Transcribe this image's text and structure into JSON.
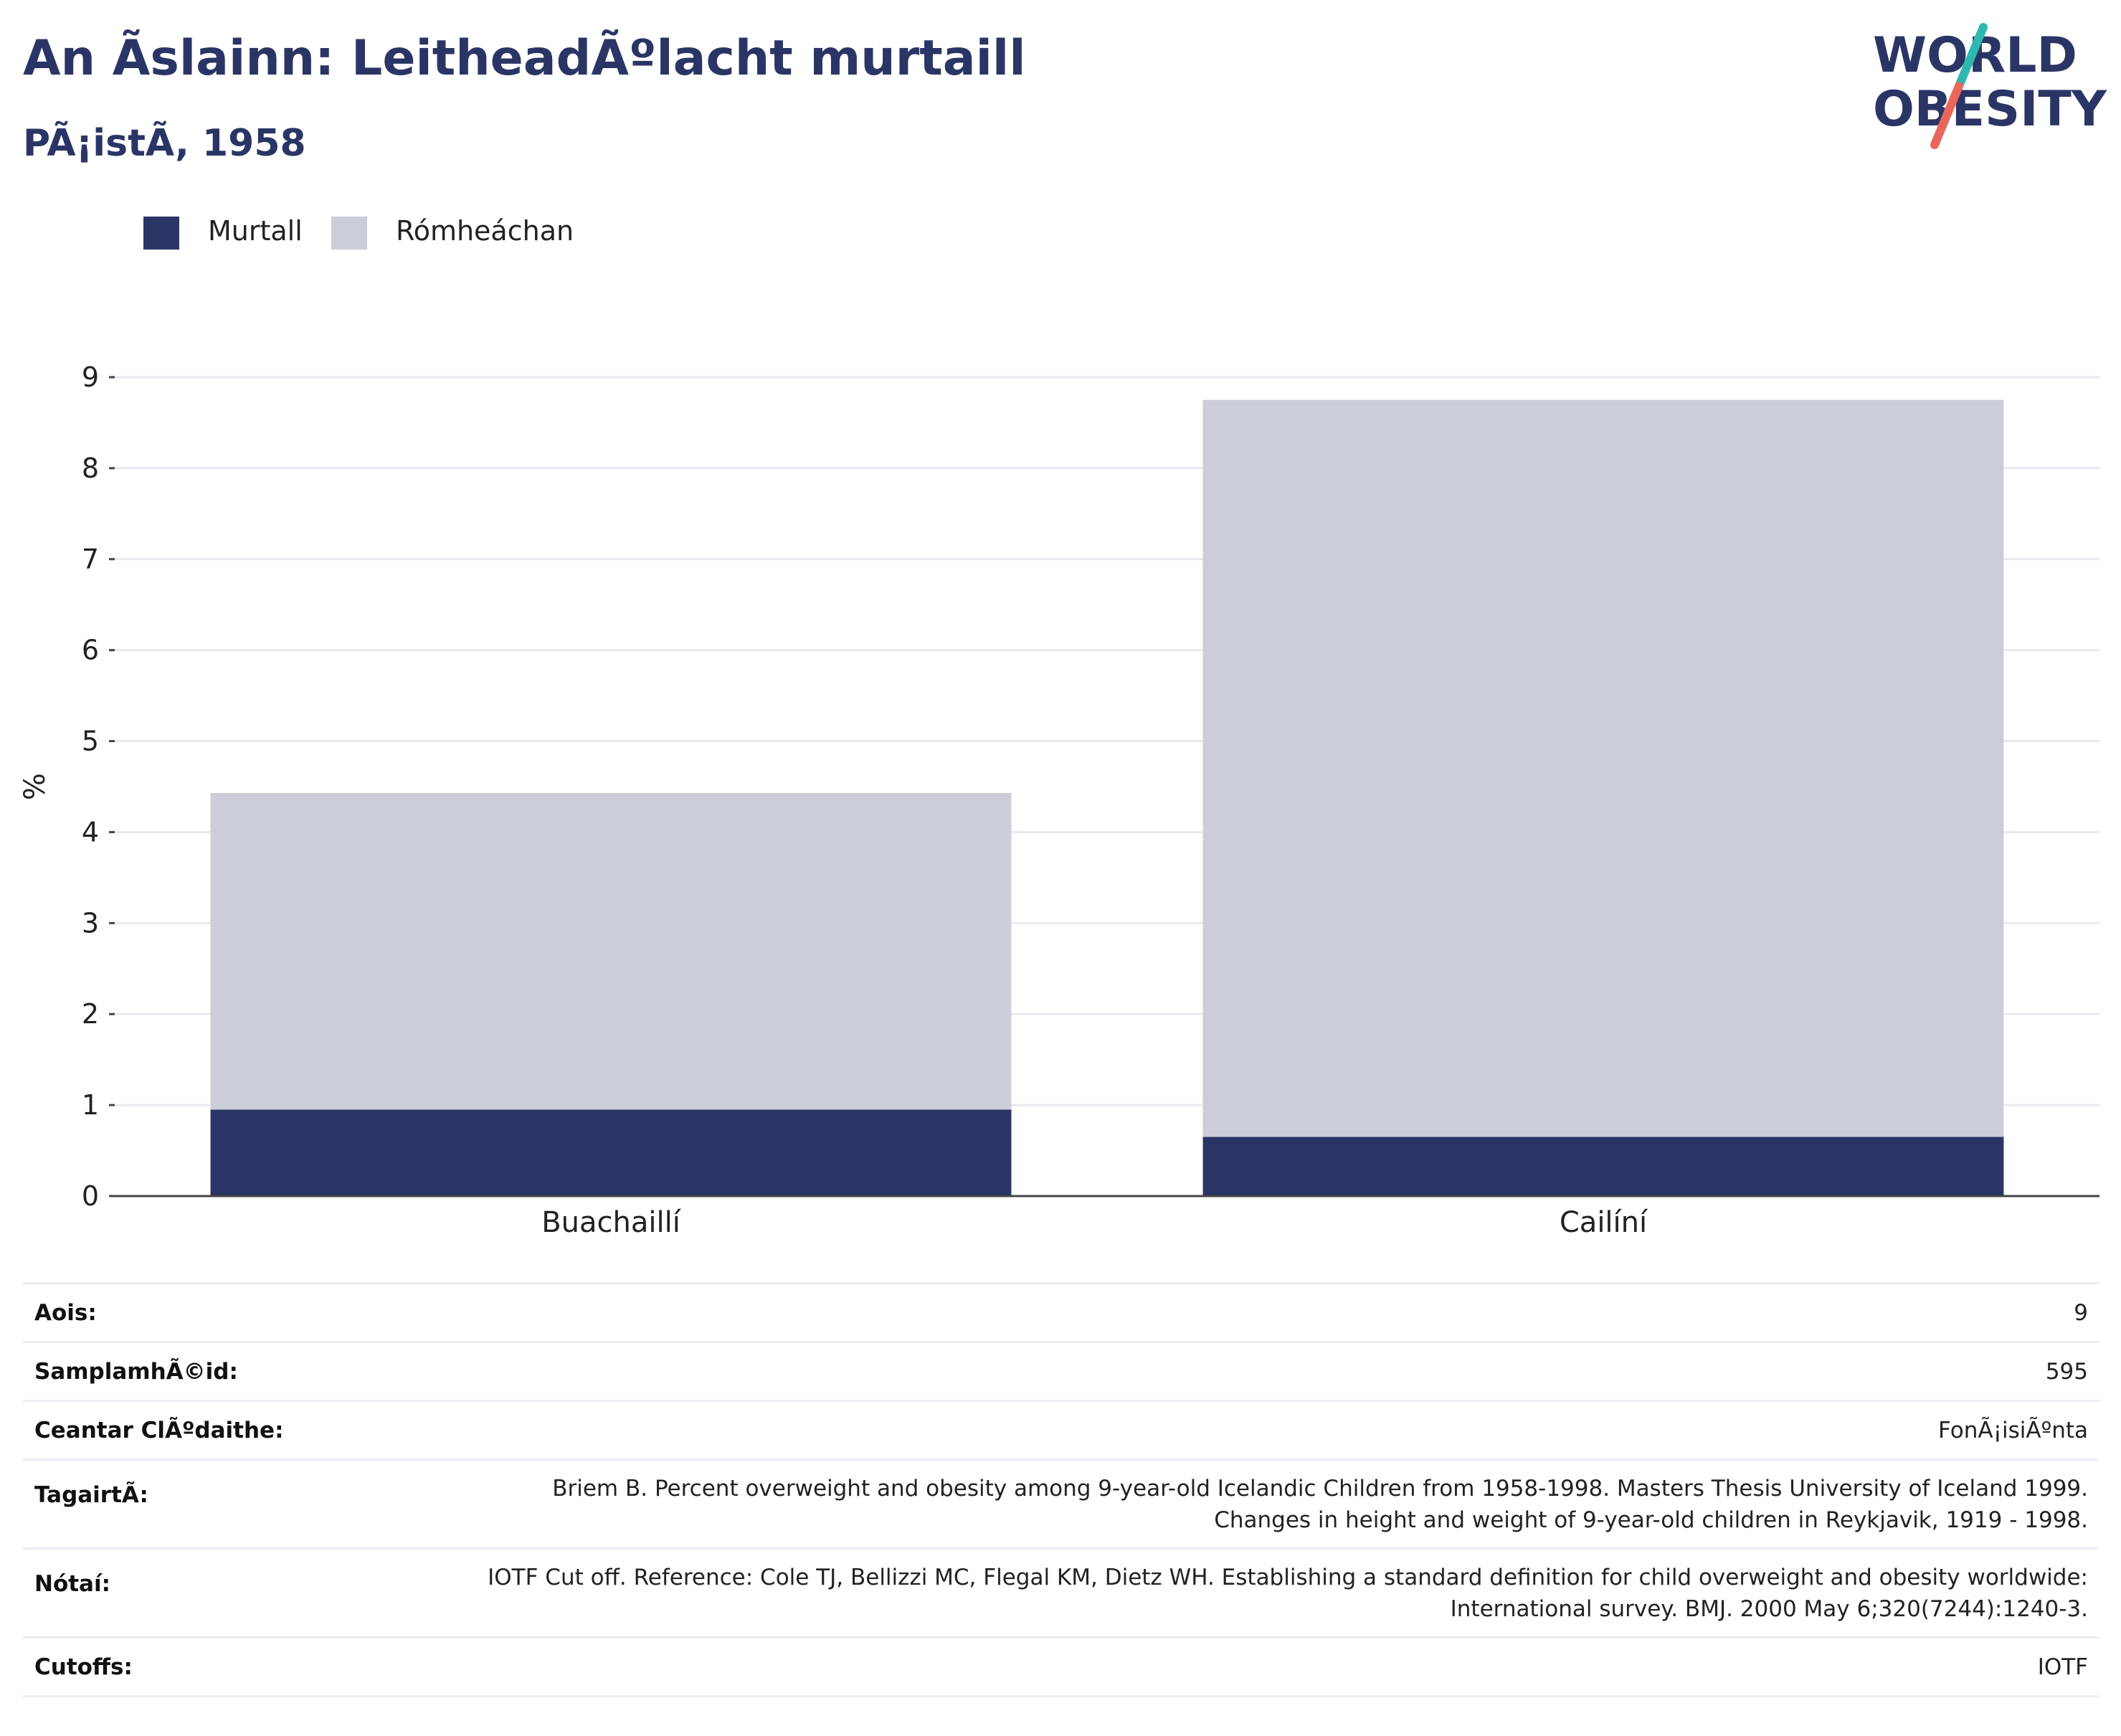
{
  "header": {
    "title": "An Ãslainn: LeitheadÃºlacht murtaill",
    "subtitle": "PÃ¡istÃ, 1958"
  },
  "logo": {
    "line1": "WORLD",
    "line2": "OBESITY",
    "colors": {
      "text": "#2b3565",
      "slash_top": "#2fb8b0",
      "slash_bottom": "#e8675a"
    }
  },
  "legend": [
    {
      "label": "Murtall",
      "color": "#2b3565"
    },
    {
      "label": "Rómheáchan",
      "color": "#cbcdd8"
    }
  ],
  "chart_data": {
    "type": "bar",
    "stacked": true,
    "categories": [
      "Buachaillí",
      "Cailíní"
    ],
    "series": [
      {
        "name": "Murtall",
        "values": [
          0.95,
          0.65
        ],
        "color": "#2b3565"
      },
      {
        "name": "Rómheáchan",
        "values": [
          3.48,
          8.1
        ],
        "color": "#cbcdd8"
      }
    ],
    "ylabel": "%",
    "ylim": [
      0,
      9
    ],
    "yticks": [
      "0",
      "1",
      "2",
      "3",
      "4",
      "5",
      "6",
      "7",
      "8",
      "9"
    ],
    "grid": true,
    "legend_position": "top-left"
  },
  "info": [
    {
      "key": "Aois:",
      "value": "9"
    },
    {
      "key": "SamplamhÃ©id:",
      "value": "595"
    },
    {
      "key": "Ceantar ClÃºdaithe:",
      "value": "FonÃ¡isiÃºnta"
    },
    {
      "key": "TagairtÃ:",
      "value": "Briem B. Percent overweight and obesity among 9-year-old Icelandic Children from 1958-1998. Masters Thesis University of Iceland 1999. Changes in height and weight of 9-year-old children in Reykjavik, 1919 - 1998."
    },
    {
      "key": "Nótaí:",
      "value": "IOTF Cut off. Reference: Cole TJ, Bellizzi MC, Flegal KM, Dietz WH. Establishing a standard definition for child overweight and obesity worldwide: International survey. BMJ. 2000 May 6;320(7244):1240-3."
    },
    {
      "key": "Cutoffs:",
      "value": "IOTF"
    }
  ]
}
